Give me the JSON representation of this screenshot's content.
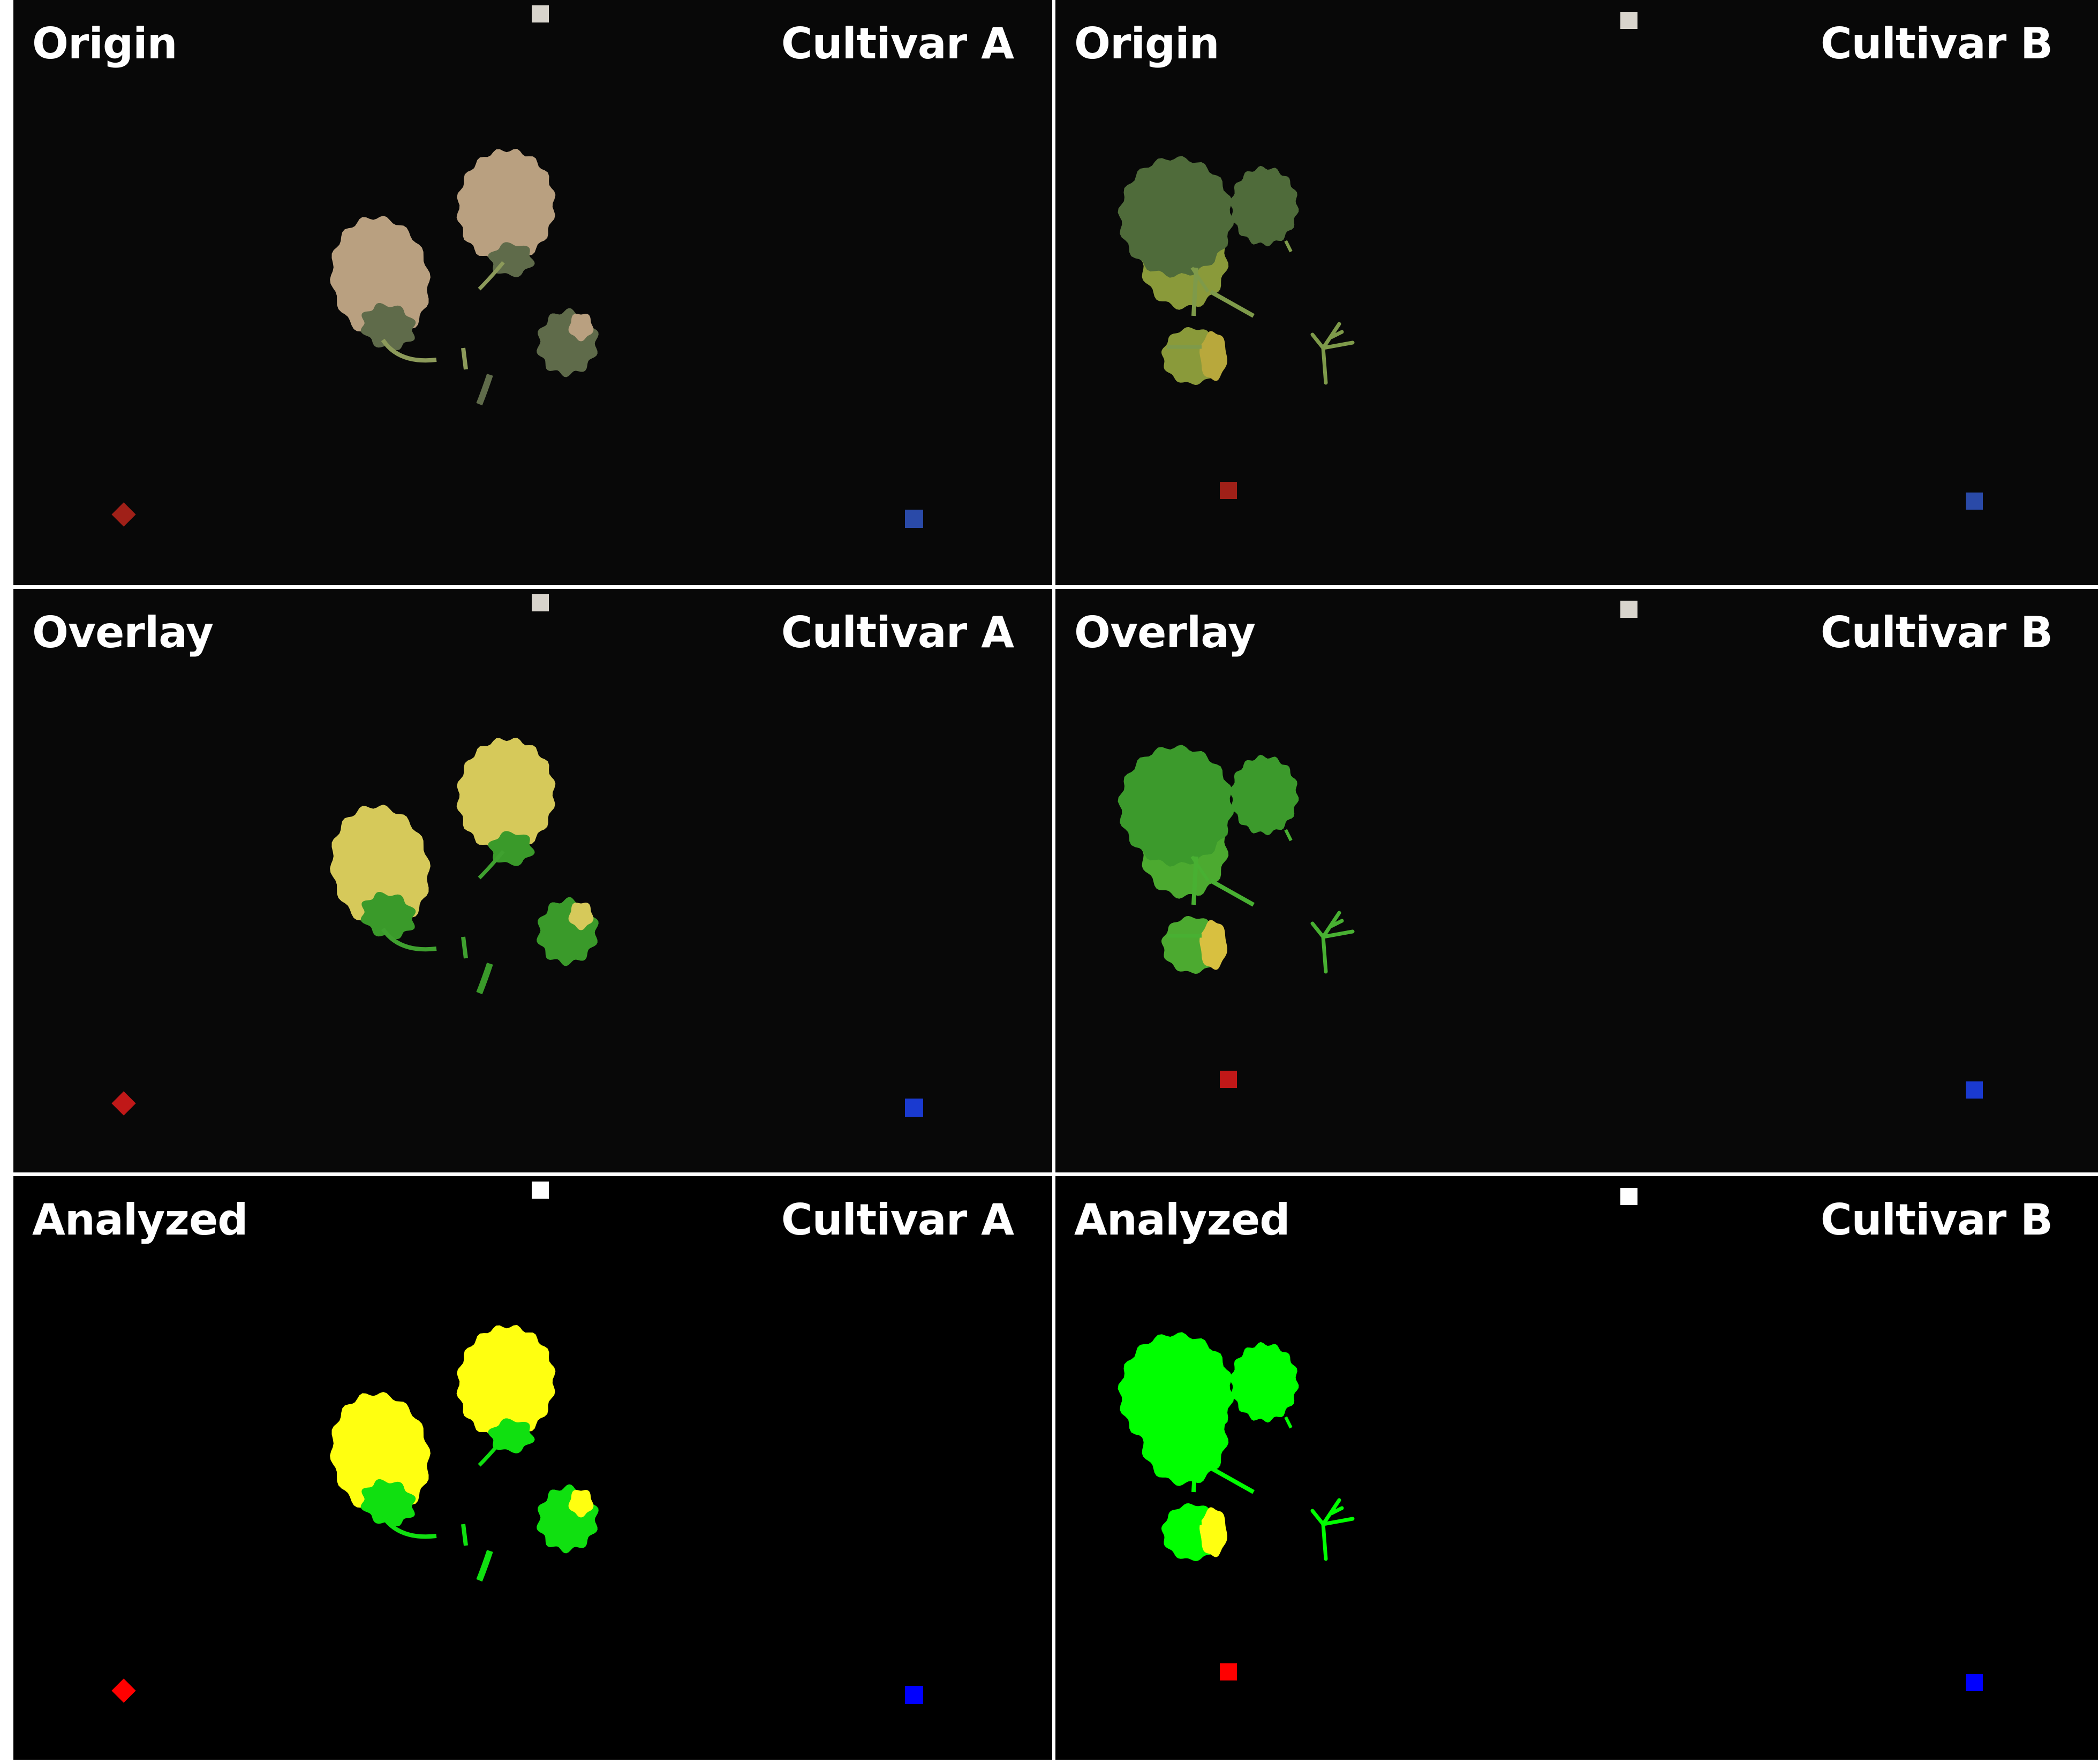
{
  "rows": [
    {
      "kind": "origin",
      "panels": [
        {
          "mode": "Origin",
          "cultivar": "Cultivar A"
        },
        {
          "mode": "Origin",
          "cultivar": "Cultivar B"
        }
      ]
    },
    {
      "kind": "overlay",
      "panels": [
        {
          "mode": "Overlay",
          "cultivar": "Cultivar A"
        },
        {
          "mode": "Overlay",
          "cultivar": "Cultivar B"
        }
      ]
    },
    {
      "kind": "analyzed",
      "panels": [
        {
          "mode": "Analyzed",
          "cultivar": "Cultivar A"
        },
        {
          "mode": "Analyzed",
          "cultivar": "Cultivar B"
        }
      ]
    }
  ],
  "palette": {
    "origin": {
      "A": {
        "leaf": "#b9a080",
        "leaf_dark": "#5f6b4a",
        "stem": "#8c9a5a"
      },
      "B": {
        "leaf": "#4f6b3a",
        "leaf_light": "#8a9a3a",
        "stem": "#7e9a4a",
        "yellow": "#b8a83c"
      }
    },
    "overlay": {
      "A": {
        "leaf": "#d6c95a",
        "leaf_dark": "#3a9a2a",
        "stem": "#3fa02f"
      },
      "B": {
        "leaf": "#3c9a2c",
        "leaf_light": "#4caa30",
        "stem": "#48b032",
        "yellow": "#d8c040"
      }
    },
    "analyzed": {
      "A": {
        "leaf": "#ffff10",
        "leaf_dark": "#10e010",
        "stem": "#10e010"
      },
      "B": {
        "leaf": "#00ff00",
        "leaf_light": "#00ff00",
        "stem": "#00ff00",
        "yellow": "#ffff10"
      }
    },
    "markers": {
      "origin": {
        "white": "#d8d4cc",
        "red": "#a02018",
        "blue": "#2a4aa8"
      },
      "overlay": {
        "white": "#d8d4cc",
        "red": "#c01818",
        "blue": "#1a3ad0"
      },
      "analyzed": {
        "white": "#ffffff",
        "red": "#ff0000",
        "blue": "#0000ff"
      }
    }
  }
}
